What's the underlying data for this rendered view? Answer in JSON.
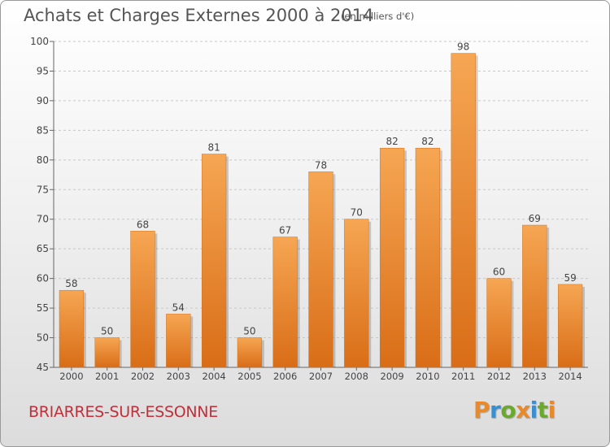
{
  "header": {
    "title": "Achats et Charges Externes 2000 à 2014",
    "subtitle": "(en milliers d'€)"
  },
  "footer": {
    "commune": "BRIARRES-SUR-ESSONNE"
  },
  "logo": {
    "text": "Proxiti",
    "letters": [
      {
        "ch": "P",
        "color": "#e8892c"
      },
      {
        "ch": "r",
        "color": "#3a8fd0"
      },
      {
        "ch": "o",
        "color": "#6aaa2a"
      },
      {
        "ch": "x",
        "color": "#e8892c"
      },
      {
        "ch": "i",
        "color": "#3a8fd0"
      },
      {
        "ch": "t",
        "color": "#6aaa2a"
      },
      {
        "ch": "i",
        "color": "#e8892c"
      }
    ]
  },
  "chart_data": {
    "type": "bar",
    "title": "Achats et Charges Externes 2000 à 2014",
    "subtitle": "(en milliers d'€)",
    "categories": [
      "2000",
      "2001",
      "2002",
      "2003",
      "2004",
      "2005",
      "2006",
      "2007",
      "2008",
      "2009",
      "2010",
      "2011",
      "2012",
      "2013",
      "2014"
    ],
    "values": [
      58,
      50,
      68,
      54,
      81,
      50,
      67,
      78,
      70,
      82,
      82,
      98,
      60,
      69,
      59
    ],
    "ylim": [
      45,
      100
    ],
    "yticks": [
      45,
      50,
      55,
      60,
      65,
      70,
      75,
      80,
      85,
      90,
      95,
      100
    ],
    "grid": true,
    "bar_color_top": "#f6a653",
    "bar_color_bottom": "#d96d17"
  }
}
